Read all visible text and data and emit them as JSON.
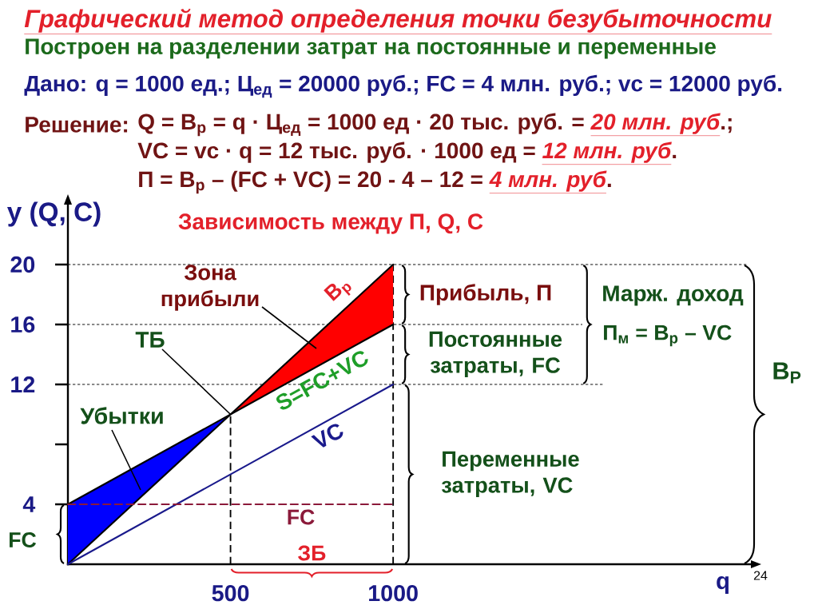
{
  "chart_data": {
    "type": "line",
    "title": "Графический метод определения точки безубыточности",
    "subtitle": "Построен на разделении затрат на постоянные и переменные",
    "xlabel": "q",
    "ylabel": "y (Q, C)",
    "xlim": [
      0,
      2100
    ],
    "ylim": [
      0,
      24
    ],
    "xticks": [
      500,
      1000
    ],
    "yticks": [
      4,
      {
        "value": 8,
        "label": null
      },
      12,
      16,
      20
    ],
    "series": [
      {
        "name": "В$_{р}$",
        "color": "#000000",
        "x": [
          0,
          1000
        ],
        "values": [
          0,
          20
        ]
      },
      {
        "name": "S=FC+VC",
        "color": "#000000",
        "x": [
          0,
          1000
        ],
        "values": [
          4,
          16
        ]
      },
      {
        "name": "VC",
        "color": "#1a1a8c",
        "x": [
          0,
          1000
        ],
        "values": [
          0,
          12
        ]
      },
      {
        "name": "FC",
        "color": "#8b1a3a",
        "x": [
          0,
          1000
        ],
        "values": [
          4,
          4
        ],
        "line_style": "dashed"
      },
      {
        "color": "#0000ff",
        "x": [
          0,
          500
        ],
        "values": [
          null,
          null
        ],
        "lower": [
          0,
          10
        ],
        "upper": [
          4,
          10
        ]
      },
      {
        "color": "#ff0000",
        "x": [
          500,
          1000
        ],
        "values": [
          null,
          null
        ],
        "lower": [
          10,
          16
        ],
        "upper": [
          10,
          20
        ]
      }
    ],
    "ref_lines": [
      {
        "axis": "y",
        "value": 20,
        "color": "#000000",
        "line_style": "dotted"
      },
      {
        "axis": "y",
        "value": 16,
        "color": "#000000",
        "line_style": "dotted"
      },
      {
        "axis": "y",
        "value": 12,
        "color": "#000000",
        "line_style": "dotted"
      },
      {
        "axis": "x",
        "value": 500,
        "color": "#000000",
        "line_style": "dashed"
      },
      {
        "axis": "x",
        "value": 1000,
        "color": "#000000",
        "line_style": "dashed"
      }
    ],
    "annotations": [
      "Дано: q = 1000 ед.; Ц$_{ед}$ = 20000 руб.; FC = 4 млн. руб.; vc = 12000 руб.",
      "Решение:",
      "Q = В$_{р}$ = q · Ц$_{ед}$ = 1000 ед · 20 тыс. руб. = *20 млн. руб*.;",
      "VC = vc · q = 12 тыс. руб. · 1000 ед = *12 млн. руб*.",
      "П = В$_{р}$ – (FC + VC) = 20 - 4 – 12 = *4 млн. руб*.",
      "Зависимость между П, Q, C",
      "Зона прибыли",
      {
        "text": "ТБ",
        "x": 500,
        "y": 10
      },
      "Убытки",
      {
        "text": "Прибыль, П",
        "x": 1000,
        "y": 18
      },
      {
        "text": "Постоянные затраты, FC",
        "x": 1000,
        "y": 14
      },
      {
        "text": "Переменные затраты, VC",
        "x": 1000,
        "y": 6
      },
      {
        "text": "Марж. доход",
        "x": 1580,
        "y": 16
      },
      "П$_{м}$ = В$_{р}$ – VC",
      "В$_{Р}$",
      {
        "text": "FC",
        "x": 0,
        "y": 2
      },
      "ЗБ",
      "24"
    ]
  }
}
